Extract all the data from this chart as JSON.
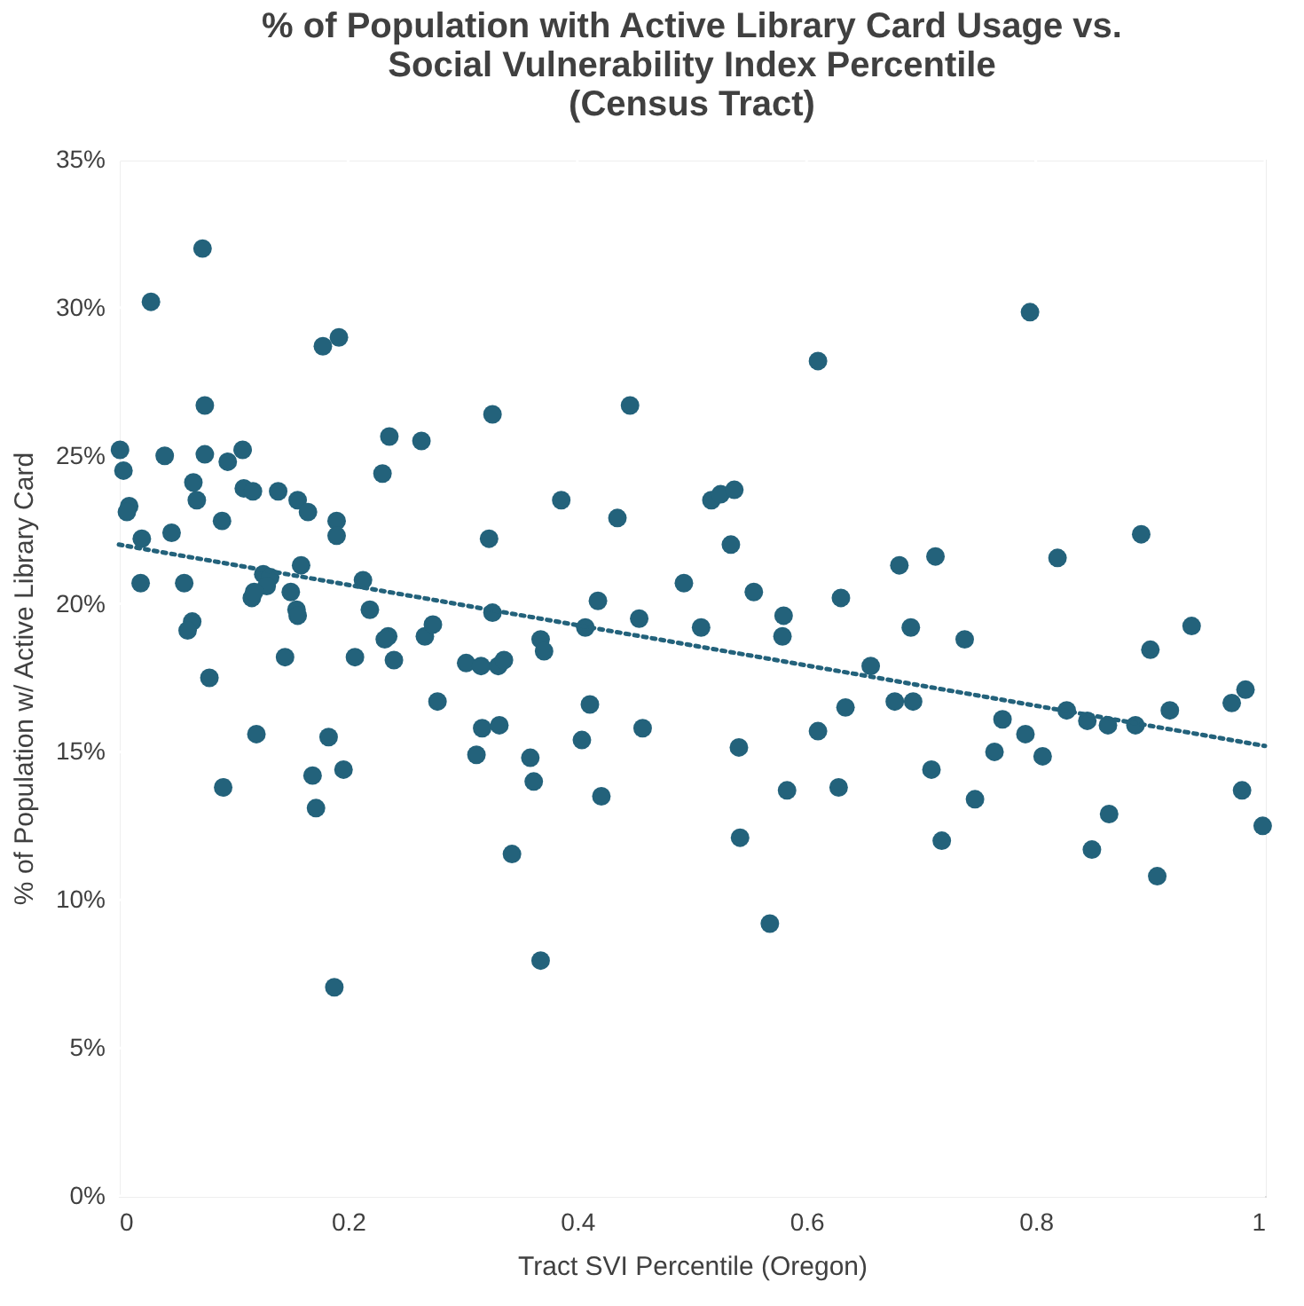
{
  "chart_data": {
    "type": "scatter",
    "title": "% of Population with Active Library Card Usage vs.\nSocial Vulnerability Index Percentile\n(Census Tract)",
    "xlabel": "Tract SVI Percentile (Oregon)",
    "ylabel": "% of Population w/ Active Library Card",
    "xlim": [
      0,
      1
    ],
    "xticks": [
      0,
      0.2,
      0.4,
      0.6,
      0.8,
      1
    ],
    "ylim": [
      0,
      35
    ],
    "yticks": [
      {
        "value": 0,
        "label": "0%"
      },
      {
        "value": 5,
        "label": "5%"
      },
      {
        "value": 10,
        "label": "10%"
      },
      {
        "value": 15,
        "label": "15%"
      },
      {
        "value": 20,
        "label": "20%"
      },
      {
        "value": 25,
        "label": "25%"
      },
      {
        "value": 30,
        "label": "30%"
      },
      {
        "value": 35,
        "label": "35%"
      }
    ],
    "grid": true,
    "marker": "circle",
    "series": [
      {
        "color": "#23627b",
        "x": [
          0.073,
          0.028,
          0.178,
          0.192,
          0.075,
          0.001,
          0.004,
          0.04,
          0.075,
          0.108,
          0.095,
          0.065,
          0.068,
          0.109,
          0.117,
          0.139,
          0.156,
          0.165,
          0.19,
          0.19,
          0.09,
          0.009,
          0.007,
          0.02,
          0.046,
          0.019,
          0.057,
          0.126,
          0.132,
          0.129,
          0.116,
          0.118,
          0.159,
          0.15,
          0.155,
          0.156,
          0.213,
          0.219,
          0.235,
          0.232,
          0.24,
          0.267,
          0.274,
          0.064,
          0.06,
          0.145,
          0.206,
          0.303,
          0.316,
          0.079,
          0.278,
          0.12,
          0.183,
          0.317,
          0.312,
          0.091,
          0.169,
          0.196,
          0.172,
          0.188,
          0.236,
          0.264,
          0.23,
          0.326,
          0.323,
          0.326,
          0.446,
          0.61,
          0.386,
          0.435,
          0.517,
          0.525,
          0.537,
          0.534,
          0.493,
          0.554,
          0.418,
          0.63,
          0.407,
          0.454,
          0.508,
          0.58,
          0.579,
          0.368,
          0.371,
          0.331,
          0.336,
          0.656,
          0.411,
          0.332,
          0.457,
          0.404,
          0.61,
          0.634,
          0.359,
          0.362,
          0.421,
          0.541,
          0.583,
          0.628,
          0.542,
          0.343,
          0.568,
          0.368,
          0.795,
          0.681,
          0.7125,
          0.819,
          0.892,
          0.691,
          0.738,
          0.936,
          0.9,
          0.677,
          0.693,
          0.771,
          0.791,
          0.827,
          0.845,
          0.863,
          0.887,
          0.917,
          0.971,
          0.983,
          0.764,
          0.806,
          0.709,
          0.747,
          0.718,
          0.864,
          0.849,
          0.906,
          0.98,
          0.998
        ],
        "values": [
          32.0,
          30.2,
          28.7,
          29.0,
          26.7,
          25.2,
          24.5,
          25.0,
          25.05,
          25.2,
          24.8,
          24.1,
          23.5,
          23.9,
          23.8,
          23.8,
          23.5,
          23.1,
          22.8,
          22.3,
          22.8,
          23.3,
          23.1,
          22.2,
          22.4,
          20.7,
          20.7,
          21.0,
          20.9,
          20.6,
          20.2,
          20.4,
          21.3,
          20.4,
          19.8,
          19.6,
          20.8,
          19.8,
          18.9,
          18.8,
          18.1,
          18.9,
          19.3,
          19.4,
          19.1,
          18.2,
          18.2,
          18.0,
          17.9,
          17.5,
          16.7,
          15.6,
          15.5,
          15.8,
          14.9,
          13.8,
          14.2,
          14.4,
          13.1,
          7.05,
          25.65,
          25.5,
          24.4,
          26.4,
          22.2,
          19.7,
          26.7,
          28.2,
          23.5,
          22.9,
          23.5,
          23.7,
          23.85,
          22.0,
          20.7,
          20.4,
          20.1,
          20.2,
          19.2,
          19.5,
          19.2,
          19.6,
          18.9,
          18.8,
          18.4,
          17.9,
          18.1,
          17.9,
          16.6,
          15.9,
          15.8,
          15.4,
          15.7,
          16.5,
          14.8,
          14.0,
          13.5,
          15.15,
          13.7,
          13.8,
          12.1,
          11.55,
          9.2,
          7.95,
          29.85,
          21.3,
          21.6,
          21.55,
          22.35,
          19.2,
          18.8,
          19.25,
          18.45,
          16.7,
          16.7,
          16.1,
          15.6,
          16.4,
          16.05,
          15.9,
          15.9,
          16.4,
          16.65,
          17.1,
          15.0,
          14.85,
          14.4,
          13.4,
          12.0,
          12.9,
          11.7,
          10.8,
          13.7,
          12.5
        ]
      },
      {
        "type": "line",
        "color": "#23627b",
        "line_style": "dotted",
        "marker": "none",
        "x": [
          0,
          1
        ],
        "values": [
          22.0,
          15.2
        ]
      }
    ]
  }
}
